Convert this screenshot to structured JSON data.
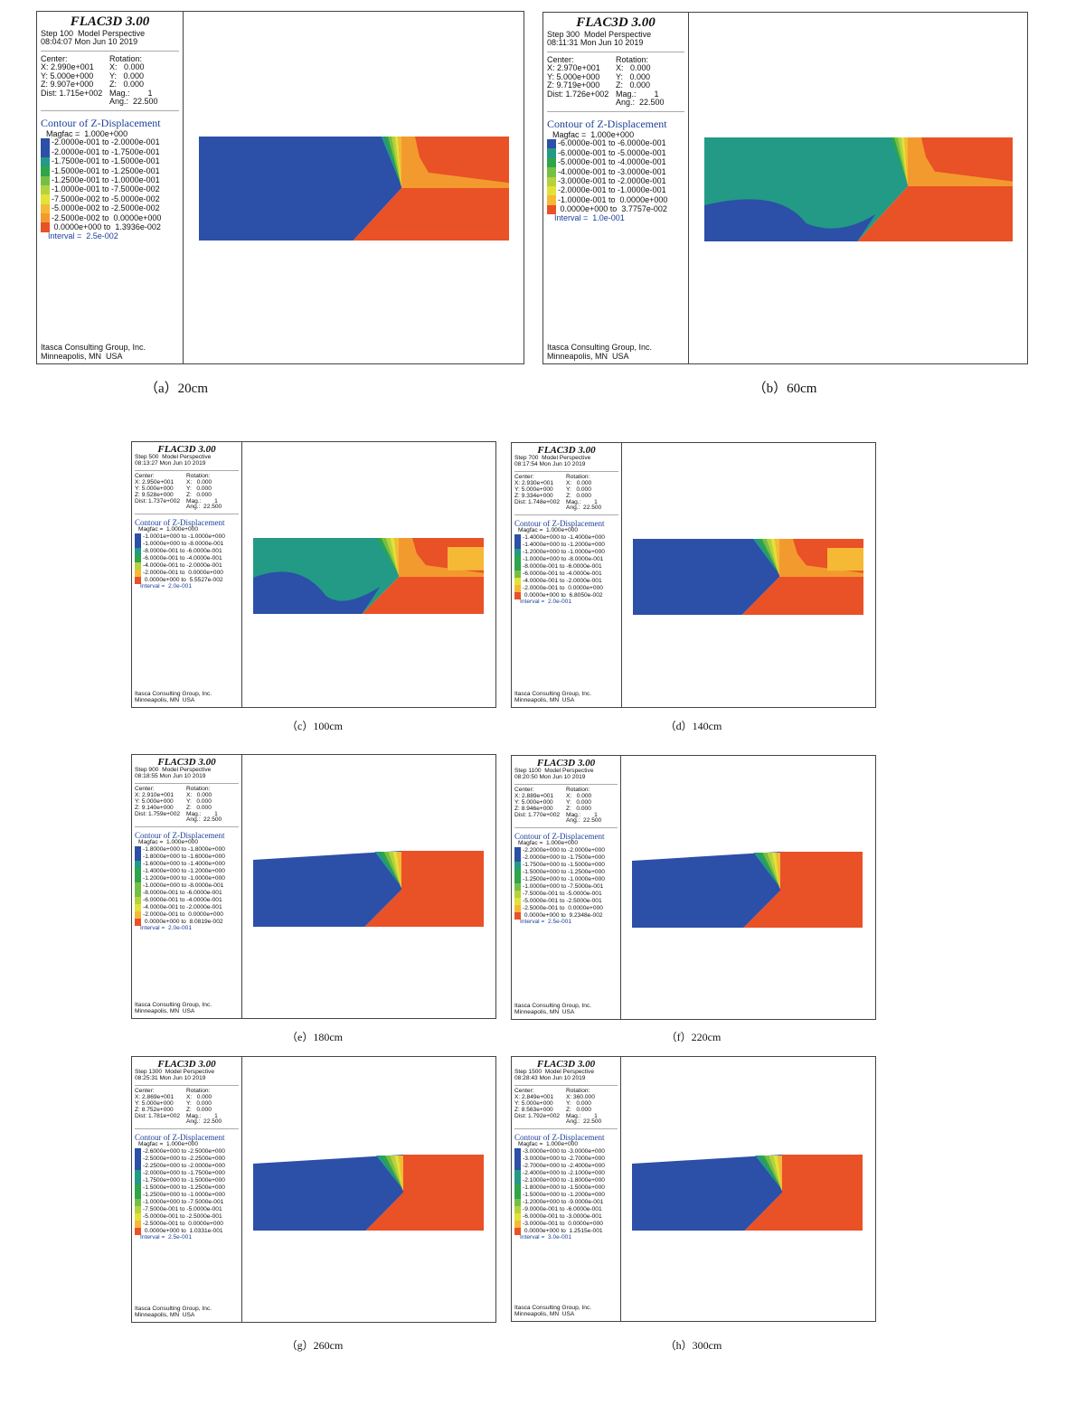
{
  "colors": {
    "c_blue": "#2c4fa8",
    "c_teal": "#229a85",
    "c_green": "#2fa44a",
    "c_lgreen": "#75c044",
    "c_yellowgreen": "#b6d23c",
    "c_yellow": "#e2e238",
    "c_lorange": "#f5b935",
    "c_orange": "#f39a2e",
    "c_red": "#e95127"
  },
  "common": {
    "app_title": "FLAC3D 3.00",
    "model_perspective": "Model Perspective",
    "center_label": "Center:",
    "rotation_label": "Rotation:",
    "contour_title": "Contour of Z-Displacement",
    "footer1": "Itasca Consulting Group, Inc.",
    "footer2": "Minneapolis, MN  USA"
  },
  "panels": [
    {
      "step": "Step 100",
      "time": "08:04:07 Mon Jun 10 2019",
      "cx": "X: 2.990e+001",
      "cy": "Y: 5.000e+000",
      "cz": "Z: 9.907e+000",
      "dist": "Dist: 1.715e+002",
      "rx": "X:   0.000",
      "ry": "Y:   0.000",
      "rz": "Z:   0.000",
      "mag": "Mag.:        1",
      "ang": "Ang.:  22.500",
      "magfac": "Magfac =  1.000e+000",
      "legend": [
        {
          "c": "c_blue",
          "t": "-2.0000e-001 to -2.0000e-001"
        },
        {
          "c": "c_blue",
          "t": "-2.0000e-001 to -1.7500e-001"
        },
        {
          "c": "c_teal",
          "t": "-1.7500e-001 to -1.5000e-001"
        },
        {
          "c": "c_green",
          "t": "-1.5000e-001 to -1.2500e-001"
        },
        {
          "c": "c_lgreen",
          "t": "-1.2500e-001 to -1.0000e-001"
        },
        {
          "c": "c_yellowgreen",
          "t": "-1.0000e-001 to -7.5000e-002"
        },
        {
          "c": "c_yellow",
          "t": "-7.5000e-002 to -5.0000e-002"
        },
        {
          "c": "c_lorange",
          "t": "-5.0000e-002 to -2.5000e-002"
        },
        {
          "c": "c_orange",
          "t": "-2.5000e-002 to  0.0000e+000"
        },
        {
          "c": "c_red",
          "t": " 0.0000e+000 to  1.3936e-002"
        }
      ],
      "interval": "Interval =  2.5e-002",
      "caption": "（a）20cm"
    },
    {
      "step": "Step 300",
      "time": "08:11:31 Mon Jun 10 2019",
      "cx": "X: 2.970e+001",
      "cy": "Y: 5.000e+000",
      "cz": "Z: 9.719e+000",
      "dist": "Dist: 1.726e+002",
      "rx": "X:   0.000",
      "ry": "Y:   0.000",
      "rz": "Z:   0.000",
      "mag": "Mag.:        1",
      "ang": "Ang.:  22.500",
      "magfac": "Magfac =  1.000e+000",
      "legend": [
        {
          "c": "c_blue",
          "t": "-6.0000e-001 to -6.0000e-001"
        },
        {
          "c": "c_teal",
          "t": "-6.0000e-001 to -5.0000e-001"
        },
        {
          "c": "c_green",
          "t": "-5.0000e-001 to -4.0000e-001"
        },
        {
          "c": "c_lgreen",
          "t": "-4.0000e-001 to -3.0000e-001"
        },
        {
          "c": "c_yellowgreen",
          "t": "-3.0000e-001 to -2.0000e-001"
        },
        {
          "c": "c_yellow",
          "t": "-2.0000e-001 to -1.0000e-001"
        },
        {
          "c": "c_lorange",
          "t": "-1.0000e-001 to  0.0000e+000"
        },
        {
          "c": "c_red",
          "t": " 0.0000e+000 to  3.7757e-002"
        }
      ],
      "interval": "Interval =  1.0e-001",
      "caption": "（b）60cm"
    },
    {
      "step": "Step 500",
      "time": "08:13:27 Mon Jun 10 2019",
      "cx": "X: 2.950e+001",
      "cy": "Y: 5.000e+000",
      "cz": "Z: 9.528e+000",
      "dist": "Dist: 1.737e+002",
      "rx": "X:   0.000",
      "ry": "Y:   0.000",
      "rz": "Z:   0.000",
      "mag": "Mag.:        1",
      "ang": "Ang.:  22.500",
      "magfac": "Magfac =  1.000e+000",
      "legend": [
        {
          "c": "c_blue",
          "t": "-1.0001e+000 to -1.0000e+000"
        },
        {
          "c": "c_blue",
          "t": "-1.0000e+000 to -8.0000e-001"
        },
        {
          "c": "c_teal",
          "t": "-8.0000e-001 to -6.0000e-001"
        },
        {
          "c": "c_green",
          "t": "-6.0000e-001 to -4.0000e-001"
        },
        {
          "c": "c_yellowgreen",
          "t": "-4.0000e-001 to -2.0000e-001"
        },
        {
          "c": "c_lorange",
          "t": "-2.0000e-001 to  0.0000e+000"
        },
        {
          "c": "c_red",
          "t": " 0.0000e+000 to  5.5527e-002"
        }
      ],
      "interval": "Interval =  2.0e-001",
      "caption": "（c）100cm"
    },
    {
      "step": "Step 700",
      "time": "08:17:54 Mon Jun 10 2019",
      "cx": "X: 2.930e+001",
      "cy": "Y: 5.000e+000",
      "cz": "Z: 9.334e+000",
      "dist": "Dist: 1.748e+002",
      "rx": "X:   0.000",
      "ry": "Y:   0.000",
      "rz": "Z:   0.000",
      "mag": "Mag.:        1",
      "ang": "Ang.:  22.500",
      "magfac": "Magfac =  1.000e+000",
      "legend": [
        {
          "c": "c_blue",
          "t": "-1.4000e+000 to -1.4000e+000"
        },
        {
          "c": "c_blue",
          "t": "-1.4000e+000 to -1.2000e+000"
        },
        {
          "c": "c_teal",
          "t": "-1.2000e+000 to -1.0000e+000"
        },
        {
          "c": "c_green",
          "t": "-1.0000e+000 to -8.0000e-001"
        },
        {
          "c": "c_green",
          "t": "-8.0000e-001 to -6.0000e-001"
        },
        {
          "c": "c_lgreen",
          "t": "-6.0000e-001 to -4.0000e-001"
        },
        {
          "c": "c_yellow",
          "t": "-4.0000e-001 to -2.0000e-001"
        },
        {
          "c": "c_lorange",
          "t": "-2.0000e-001 to  0.0000e+000"
        },
        {
          "c": "c_red",
          "t": " 0.0000e+000 to  6.8050e-002"
        }
      ],
      "interval": "Interval =  2.0e-001",
      "caption": "（d）140cm"
    },
    {
      "step": "Step 900",
      "time": "08:18:55 Mon Jun 10 2019",
      "cx": "X: 2.910e+001",
      "cy": "Y: 5.000e+000",
      "cz": "Z: 9.140e+000",
      "dist": "Dist: 1.759e+002",
      "rx": "X:   0.000",
      "ry": "Y:   0.000",
      "rz": "Z:   0.000",
      "mag": "Mag.:        1",
      "ang": "Ang.:  22.500",
      "magfac": "Magfac =  1.000e+000",
      "legend": [
        {
          "c": "c_blue",
          "t": "-1.8000e+000 to -1.8000e+000"
        },
        {
          "c": "c_blue",
          "t": "-1.8000e+000 to -1.6000e+000"
        },
        {
          "c": "c_teal",
          "t": "-1.6000e+000 to -1.4000e+000"
        },
        {
          "c": "c_green",
          "t": "-1.4000e+000 to -1.2000e+000"
        },
        {
          "c": "c_green",
          "t": "-1.2000e+000 to -1.0000e+000"
        },
        {
          "c": "c_lgreen",
          "t": "-1.0000e+000 to -8.0000e-001"
        },
        {
          "c": "c_lgreen",
          "t": "-8.0000e-001 to -6.0000e-001"
        },
        {
          "c": "c_yellowgreen",
          "t": "-6.0000e-001 to -4.0000e-001"
        },
        {
          "c": "c_yellow",
          "t": "-4.0000e-001 to -2.0000e-001"
        },
        {
          "c": "c_lorange",
          "t": "-2.0000e-001 to  0.0000e+000"
        },
        {
          "c": "c_red",
          "t": " 0.0000e+000 to  8.0819e-002"
        }
      ],
      "interval": "Interval =  2.0e-001",
      "caption": "（e）180cm"
    },
    {
      "step": "Step 1100",
      "time": "08:20:50 Mon Jun 10 2019",
      "cx": "X: 2.889e+001",
      "cy": "Y: 5.000e+000",
      "cz": "Z: 8.946e+000",
      "dist": "Dist: 1.770e+002",
      "rx": "X:   0.000",
      "ry": "Y:   0.000",
      "rz": "Z:   0.000",
      "mag": "Mag.:        1",
      "ang": "Ang.:  22.500",
      "magfac": "Magfac =  1.000e+000",
      "legend": [
        {
          "c": "c_blue",
          "t": "-2.2000e+000 to -2.0000e+000"
        },
        {
          "c": "c_blue",
          "t": "-2.0000e+000 to -1.7500e+000"
        },
        {
          "c": "c_teal",
          "t": "-1.7500e+000 to -1.5000e+000"
        },
        {
          "c": "c_green",
          "t": "-1.5000e+000 to -1.2500e+000"
        },
        {
          "c": "c_green",
          "t": "-1.2500e+000 to -1.0000e+000"
        },
        {
          "c": "c_lgreen",
          "t": "-1.0000e+000 to -7.5000e-001"
        },
        {
          "c": "c_yellowgreen",
          "t": "-7.5000e-001 to -5.0000e-001"
        },
        {
          "c": "c_yellow",
          "t": "-5.0000e-001 to -2.5000e-001"
        },
        {
          "c": "c_lorange",
          "t": "-2.5000e-001 to  0.0000e+000"
        },
        {
          "c": "c_red",
          "t": " 0.0000e+000 to  9.2348e-002"
        }
      ],
      "interval": "Interval =  2.5e-001",
      "caption": "（f）220cm"
    },
    {
      "step": "Step 1300",
      "time": "08:25:31 Mon Jun 10 2019",
      "cx": "X: 2.869e+001",
      "cy": "Y: 5.000e+000",
      "cz": "Z: 8.752e+000",
      "dist": "Dist: 1.781e+002",
      "rx": "X:   0.000",
      "ry": "Y:   0.000",
      "rz": "Z:   0.000",
      "mag": "Mag.:        1",
      "ang": "Ang.:  22.500",
      "magfac": "Magfac =  1.000e+000",
      "legend": [
        {
          "c": "c_blue",
          "t": "-2.6000e+000 to -2.5000e+000"
        },
        {
          "c": "c_blue",
          "t": "-2.5000e+000 to -2.2500e+000"
        },
        {
          "c": "c_blue",
          "t": "-2.2500e+000 to -2.0000e+000"
        },
        {
          "c": "c_teal",
          "t": "-2.0000e+000 to -1.7500e+000"
        },
        {
          "c": "c_teal",
          "t": "-1.7500e+000 to -1.5000e+000"
        },
        {
          "c": "c_green",
          "t": "-1.5000e+000 to -1.2500e+000"
        },
        {
          "c": "c_green",
          "t": "-1.2500e+000 to -1.0000e+000"
        },
        {
          "c": "c_lgreen",
          "t": "-1.0000e+000 to -7.5000e-001"
        },
        {
          "c": "c_yellowgreen",
          "t": "-7.5000e-001 to -5.0000e-001"
        },
        {
          "c": "c_yellow",
          "t": "-5.0000e-001 to -2.5000e-001"
        },
        {
          "c": "c_lorange",
          "t": "-2.5000e-001 to  0.0000e+000"
        },
        {
          "c": "c_red",
          "t": " 0.0000e+000 to  1.0331e-001"
        }
      ],
      "interval": "Interval =  2.5e-001",
      "caption": "（g）260cm"
    },
    {
      "step": "Step 1500",
      "time": "08:28:43 Mon Jun 10 2019",
      "cx": "X: 2.849e+001",
      "cy": "Y: 5.000e+000",
      "cz": "Z: 8.563e+000",
      "dist": "Dist: 1.792e+002",
      "rx": "X: 360.000",
      "ry": "Y:   0.000",
      "rz": "Z:   0.000",
      "mag": "Mag.:        1",
      "ang": "Ang.:  22.500",
      "magfac": "Magfac =  1.000e+000",
      "legend": [
        {
          "c": "c_blue",
          "t": "-3.0000e+000 to -3.0000e+000"
        },
        {
          "c": "c_blue",
          "t": "-3.0000e+000 to -2.7000e+000"
        },
        {
          "c": "c_blue",
          "t": "-2.7000e+000 to -2.4000e+000"
        },
        {
          "c": "c_teal",
          "t": "-2.4000e+000 to -2.1000e+000"
        },
        {
          "c": "c_teal",
          "t": "-2.1000e+000 to -1.8000e+000"
        },
        {
          "c": "c_green",
          "t": "-1.8000e+000 to -1.5000e+000"
        },
        {
          "c": "c_green",
          "t": "-1.5000e+000 to -1.2000e+000"
        },
        {
          "c": "c_lgreen",
          "t": "-1.2000e+000 to -9.0000e-001"
        },
        {
          "c": "c_yellowgreen",
          "t": "-9.0000e-001 to -6.0000e-001"
        },
        {
          "c": "c_yellow",
          "t": "-6.0000e-001 to -3.0000e-001"
        },
        {
          "c": "c_lorange",
          "t": "-3.0000e-001 to  0.0000e+000"
        },
        {
          "c": "c_red",
          "t": " 0.0000e+000 to  1.2515e-001"
        }
      ],
      "interval": "Interval =  3.0e-001",
      "caption": "（h）300cm"
    }
  ]
}
